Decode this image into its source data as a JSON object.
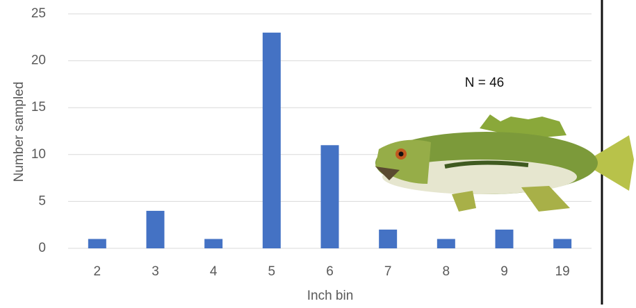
{
  "chart_data": {
    "type": "bar",
    "categories": [
      "2",
      "3",
      "4",
      "5",
      "6",
      "7",
      "8",
      "9",
      "19"
    ],
    "values": [
      1,
      4,
      1,
      23,
      11,
      2,
      1,
      2,
      1
    ],
    "color": "#4472c4",
    "ylim": [
      0,
      25
    ],
    "yticks": [
      0,
      5,
      10,
      15,
      20,
      25
    ],
    "grid": true,
    "y_label": "Number sampled",
    "x_label": "Inch bin",
    "annotation": "N = 46"
  }
}
